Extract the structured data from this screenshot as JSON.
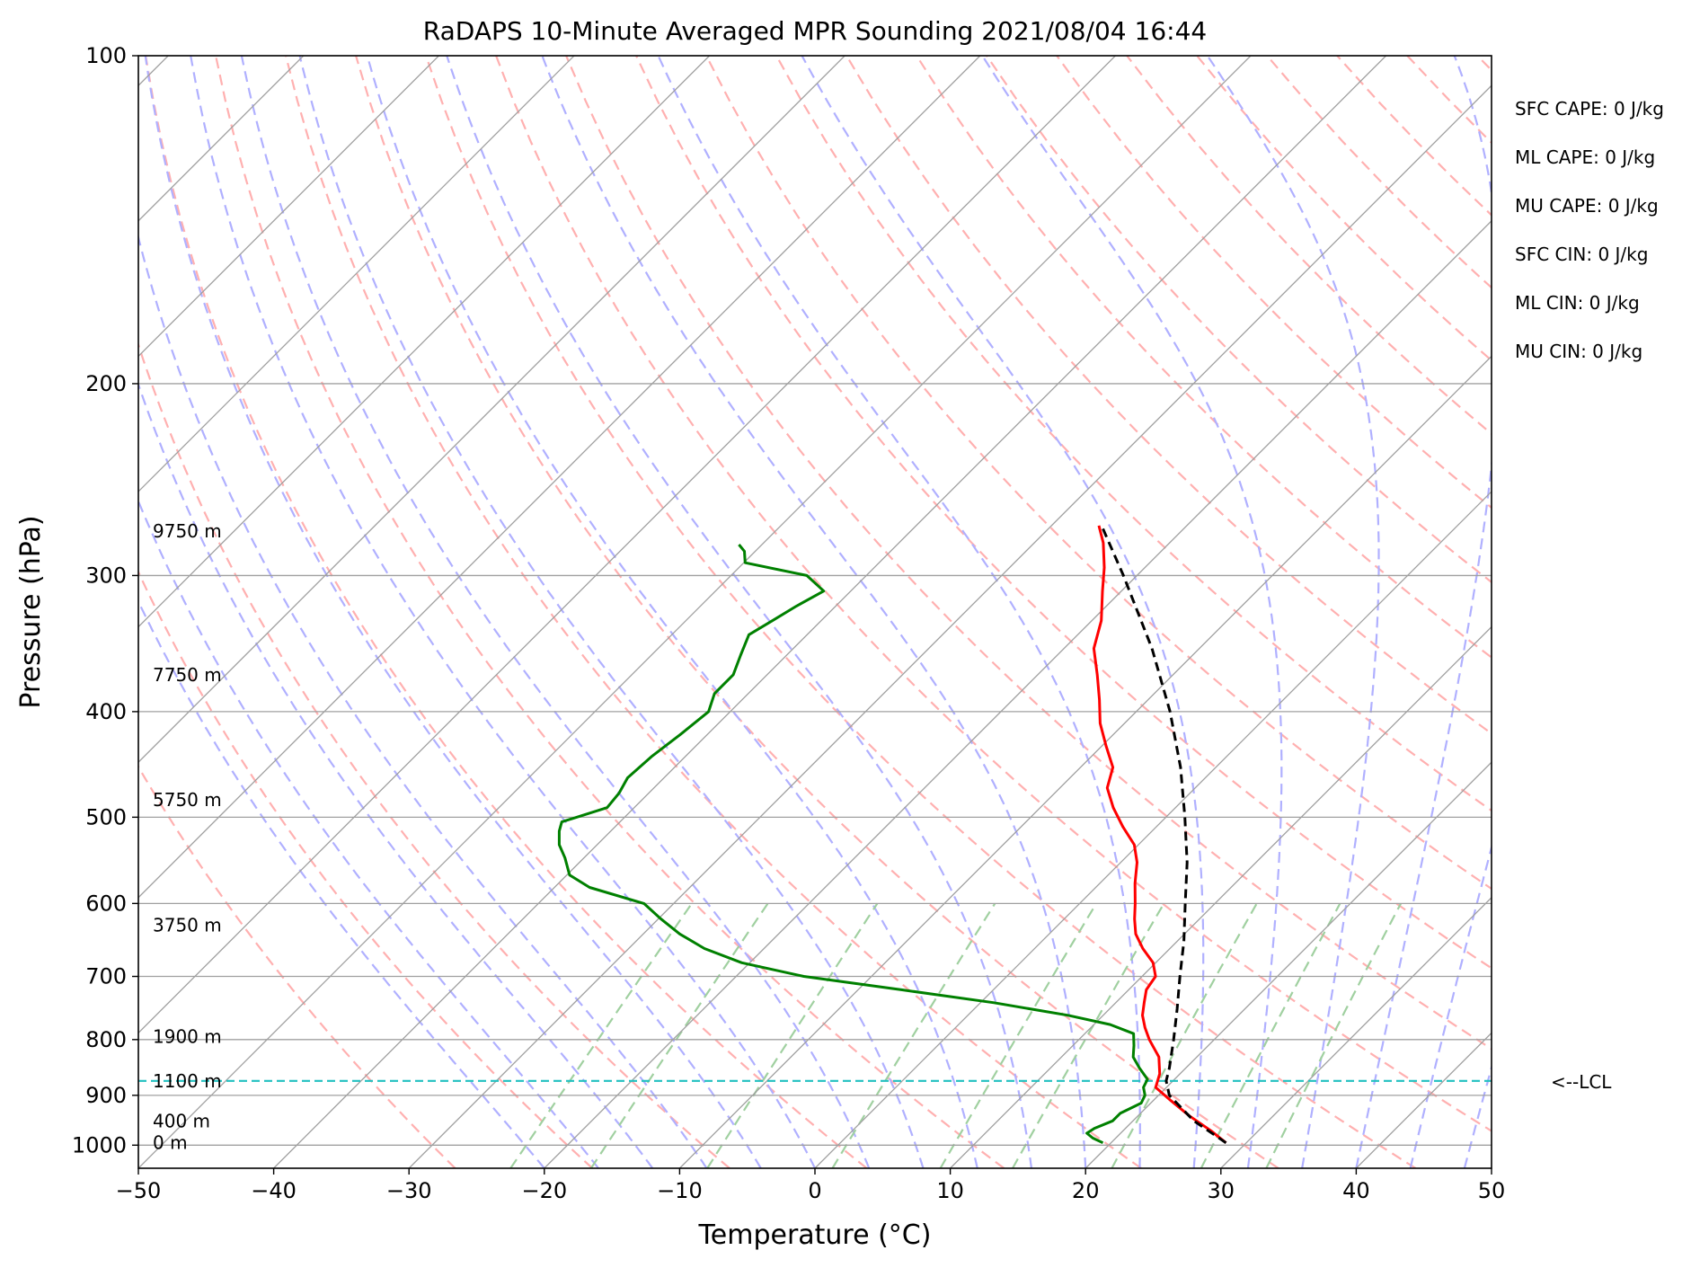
{
  "chart_data": {
    "type": "line",
    "title": "RaDAPS 10-Minute Averaged MPR Sounding 2021/08/04 16:44",
    "xlabel": "Temperature (°C)",
    "ylabel": "Pressure (hPa)",
    "xlim": [
      -50,
      50
    ],
    "ylim": [
      1050,
      100
    ],
    "y_scale": "log",
    "grid": true,
    "x_ticks": [
      -50,
      -40,
      -30,
      -20,
      -10,
      0,
      10,
      20,
      30,
      40,
      50
    ],
    "x_tick_labels": [
      "−50",
      "−40",
      "−30",
      "−20",
      "−10",
      "0",
      "10",
      "20",
      "30",
      "40",
      "50"
    ],
    "y_ticks": [
      100,
      200,
      300,
      400,
      500,
      600,
      700,
      800,
      900,
      1000
    ],
    "y_tick_labels": [
      "100",
      "200",
      "300",
      "400",
      "500",
      "600",
      "700",
      "800",
      "900",
      "1000"
    ],
    "colors": {
      "temperature": "#ff0000",
      "dewpoint": "#008000",
      "parcel": "#000000",
      "lcl_line": "#20c0c0",
      "isotherm": "#a0a0a0",
      "dry_adiabat": "#ffb0b0",
      "moist_adiabat": "#b0b0ff",
      "mixing_ratio": "#a0d0a0"
    },
    "series": [
      {
        "key": "temperature",
        "points": [
          {
            "p": 995,
            "t": 28.5
          },
          {
            "p": 970,
            "t": 26.5
          },
          {
            "p": 940,
            "t": 23.8
          },
          {
            "p": 910,
            "t": 21.3
          },
          {
            "p": 885,
            "t": 19.2
          },
          {
            "p": 860,
            "t": 18.5
          },
          {
            "p": 830,
            "t": 17.2
          },
          {
            "p": 800,
            "t": 15.2
          },
          {
            "p": 780,
            "t": 14.0
          },
          {
            "p": 760,
            "t": 12.9
          },
          {
            "p": 740,
            "t": 12.1
          },
          {
            "p": 720,
            "t": 11.3
          },
          {
            "p": 700,
            "t": 11.0
          },
          {
            "p": 680,
            "t": 9.8
          },
          {
            "p": 660,
            "t": 8.0
          },
          {
            "p": 640,
            "t": 6.4
          },
          {
            "p": 620,
            "t": 5.2
          },
          {
            "p": 600,
            "t": 4.1
          },
          {
            "p": 575,
            "t": 2.6
          },
          {
            "p": 550,
            "t": 1.2
          },
          {
            "p": 530,
            "t": -0.3
          },
          {
            "p": 510,
            "t": -2.5
          },
          {
            "p": 490,
            "t": -4.6
          },
          {
            "p": 470,
            "t": -6.5
          },
          {
            "p": 450,
            "t": -7.6
          },
          {
            "p": 430,
            "t": -9.7
          },
          {
            "p": 410,
            "t": -11.8
          },
          {
            "p": 390,
            "t": -13.6
          },
          {
            "p": 370,
            "t": -15.6
          },
          {
            "p": 350,
            "t": -17.8
          },
          {
            "p": 330,
            "t": -19.3
          },
          {
            "p": 310,
            "t": -21.4
          },
          {
            "p": 295,
            "t": -23.0
          },
          {
            "p": 280,
            "t": -24.9
          },
          {
            "p": 270,
            "t": -26.5
          }
        ]
      },
      {
        "key": "dewpoint",
        "points": [
          {
            "p": 995,
            "t": 19.4
          },
          {
            "p": 985,
            "t": 18.3
          },
          {
            "p": 975,
            "t": 17.5
          },
          {
            "p": 965,
            "t": 17.7
          },
          {
            "p": 950,
            "t": 18.5
          },
          {
            "p": 935,
            "t": 18.5
          },
          {
            "p": 915,
            "t": 19.3
          },
          {
            "p": 900,
            "t": 19.0
          },
          {
            "p": 885,
            "t": 18.3
          },
          {
            "p": 870,
            "t": 18.0
          },
          {
            "p": 850,
            "t": 16.6
          },
          {
            "p": 830,
            "t": 15.3
          },
          {
            "p": 810,
            "t": 14.5
          },
          {
            "p": 790,
            "t": 13.6
          },
          {
            "p": 775,
            "t": 11.2
          },
          {
            "p": 760,
            "t": 7.4
          },
          {
            "p": 740,
            "t": 1.0
          },
          {
            "p": 720,
            "t": -6.8
          },
          {
            "p": 700,
            "t": -15.0
          },
          {
            "p": 680,
            "t": -20.6
          },
          {
            "p": 660,
            "t": -24.4
          },
          {
            "p": 640,
            "t": -27.3
          },
          {
            "p": 620,
            "t": -29.8
          },
          {
            "p": 600,
            "t": -32.2
          },
          {
            "p": 580,
            "t": -37.4
          },
          {
            "p": 565,
            "t": -39.8
          },
          {
            "p": 545,
            "t": -41.4
          },
          {
            "p": 530,
            "t": -42.8
          },
          {
            "p": 515,
            "t": -43.8
          },
          {
            "p": 505,
            "t": -44.3
          },
          {
            "p": 490,
            "t": -42.0
          },
          {
            "p": 475,
            "t": -42.2
          },
          {
            "p": 460,
            "t": -42.7
          },
          {
            "p": 440,
            "t": -42.5
          },
          {
            "p": 420,
            "t": -42.0
          },
          {
            "p": 400,
            "t": -41.6
          },
          {
            "p": 385,
            "t": -42.5
          },
          {
            "p": 370,
            "t": -42.5
          },
          {
            "p": 355,
            "t": -43.4
          },
          {
            "p": 340,
            "t": -44.3
          },
          {
            "p": 330,
            "t": -43.6
          },
          {
            "p": 320,
            "t": -42.9
          },
          {
            "p": 310,
            "t": -42.0
          },
          {
            "p": 300,
            "t": -44.4
          },
          {
            "p": 292,
            "t": -49.9
          },
          {
            "p": 285,
            "t": -50.8
          },
          {
            "p": 281,
            "t": -51.7
          }
        ]
      },
      {
        "key": "parcel",
        "points": [
          {
            "p": 995,
            "t": 28.5
          },
          {
            "p": 950,
            "t": 24.5
          },
          {
            "p": 900,
            "t": 20.8
          },
          {
            "p": 873,
            "t": 19.5
          },
          {
            "p": 850,
            "t": 18.8
          },
          {
            "p": 800,
            "t": 17.0
          },
          {
            "p": 750,
            "t": 15.0
          },
          {
            "p": 700,
            "t": 12.8
          },
          {
            "p": 650,
            "t": 10.5
          },
          {
            "p": 600,
            "t": 7.8
          },
          {
            "p": 550,
            "t": 4.9
          },
          {
            "p": 500,
            "t": 1.4
          },
          {
            "p": 450,
            "t": -2.6
          },
          {
            "p": 400,
            "t": -7.5
          },
          {
            "p": 350,
            "t": -13.5
          },
          {
            "p": 300,
            "t": -21.0
          },
          {
            "p": 270,
            "t": -26.3
          }
        ]
      }
    ],
    "lcl": {
      "p": 873,
      "label": "<--LCL"
    },
    "height_labels": [
      {
        "p": 995,
        "text": "0 m"
      },
      {
        "p": 950,
        "text": "400 m"
      },
      {
        "p": 873,
        "text": "1100 m"
      },
      {
        "p": 795,
        "text": "1900 m"
      },
      {
        "p": 628,
        "text": "3750 m"
      },
      {
        "p": 482,
        "text": "5750 m"
      },
      {
        "p": 370,
        "text": "7750 m"
      },
      {
        "p": 273,
        "text": "9750 m"
      }
    ],
    "indices": [
      "SFC CAPE: 0 J/kg",
      "ML CAPE: 0 J/kg",
      "MU CAPE: 0 J/kg",
      "SFC CIN: 0 J/kg",
      "ML CIN: 0 J/kg",
      "MU CIN: 0 J/kg"
    ]
  }
}
